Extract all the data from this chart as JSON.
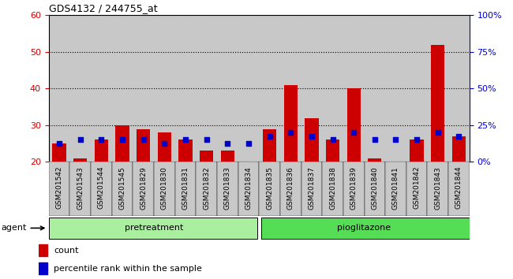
{
  "title": "GDS4132 / 244755_at",
  "samples": [
    "GSM201542",
    "GSM201543",
    "GSM201544",
    "GSM201545",
    "GSM201829",
    "GSM201830",
    "GSM201831",
    "GSM201832",
    "GSM201833",
    "GSM201834",
    "GSM201835",
    "GSM201836",
    "GSM201837",
    "GSM201838",
    "GSM201839",
    "GSM201840",
    "GSM201841",
    "GSM201842",
    "GSM201843",
    "GSM201844"
  ],
  "count_values": [
    25,
    21,
    26,
    30,
    29,
    28,
    26,
    23,
    23,
    20,
    29,
    41,
    32,
    26,
    40,
    21,
    20,
    26,
    52,
    27
  ],
  "percentile_values": [
    25,
    26,
    26,
    26,
    26,
    25,
    26,
    26,
    25,
    25,
    27,
    28,
    27,
    26,
    28,
    26,
    26,
    26,
    28,
    27
  ],
  "count_color": "#cc0000",
  "percentile_color": "#0000cc",
  "col_bg_color": "#c8c8c8",
  "plot_bg_color": "#ffffff",
  "pretreatment_color": "#aaeea0",
  "pioglitazone_color": "#55dd55",
  "ylim_left": [
    20,
    60
  ],
  "ylim_right": [
    0,
    100
  ],
  "yticks_left": [
    20,
    30,
    40,
    50,
    60
  ],
  "ytick_labels_left": [
    "20",
    "30",
    "40",
    "50",
    "60"
  ],
  "yticks_right": [
    0,
    25,
    50,
    75,
    100
  ],
  "ytick_labels_right": [
    "0%",
    "25%",
    "50%",
    "75%",
    "100%"
  ],
  "bar_width": 0.65,
  "agent_label": "agent",
  "pretreatment_label": "pretreatment",
  "pioglitazone_label": "pioglitazone",
  "legend_count": "count",
  "legend_percentile": "percentile rank within the sample",
  "n_pretreatment": 10,
  "n_pioglitazone": 10
}
